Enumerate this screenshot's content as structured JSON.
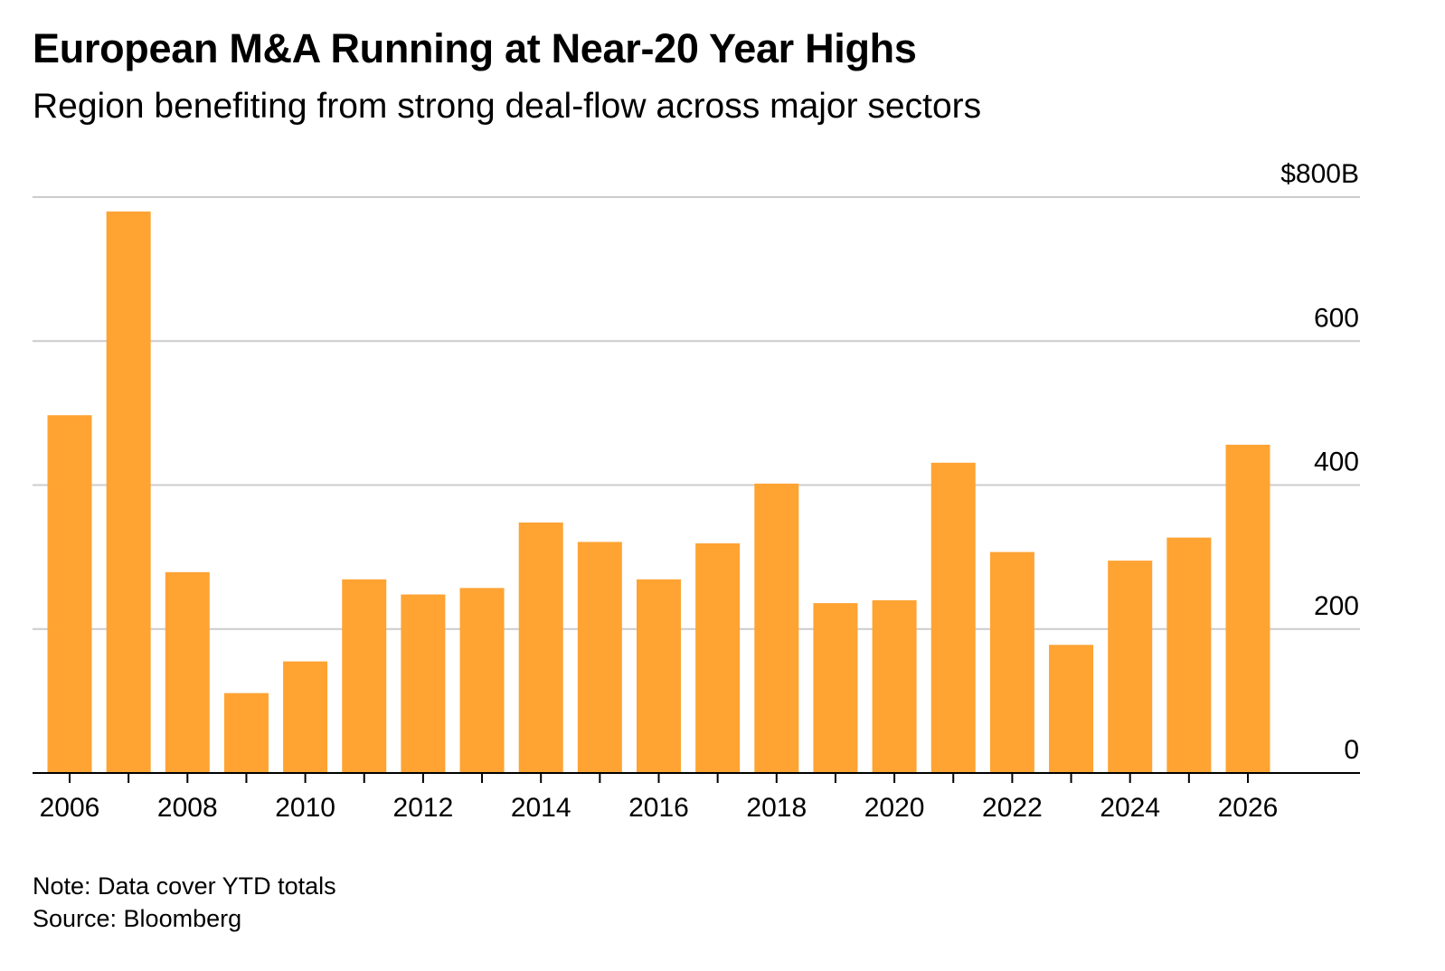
{
  "header": {
    "title": "European M&A Running at Near-20 Year Highs",
    "subtitle": "Region benefiting from strong deal-flow across major sectors"
  },
  "footer": {
    "note": "Note: Data cover YTD totals",
    "source": "Source: Bloomberg"
  },
  "colors": {
    "bar": "#FFA333",
    "grid": "#CCCCCC",
    "axis": "#000000",
    "text": "#000000"
  },
  "chart_data": {
    "type": "bar",
    "title": "European M&A Running at Near-20 Year Highs",
    "subtitle": "Region benefiting from strong deal-flow across major sectors",
    "categories": [
      "2006",
      "2007",
      "2008",
      "2009",
      "2010",
      "2011",
      "2012",
      "2013",
      "2014",
      "2015",
      "2016",
      "2017",
      "2018",
      "2019",
      "2020",
      "2021",
      "2022",
      "2023",
      "2024",
      "2025",
      "2026"
    ],
    "values": [
      497,
      780,
      279,
      111,
      155,
      269,
      248,
      257,
      348,
      321,
      269,
      319,
      402,
      236,
      240,
      431,
      307,
      178,
      295,
      327,
      456
    ],
    "x_tick_labels": [
      "2006",
      "2008",
      "2010",
      "2012",
      "2014",
      "2016",
      "2018",
      "2020",
      "2022",
      "2024",
      "2026"
    ],
    "y_ticks": [
      0,
      200,
      400,
      600,
      800
    ],
    "y_tick_labels": [
      "0",
      "200",
      "400",
      "600",
      "$800B"
    ],
    "ylim": [
      0,
      800
    ],
    "y_axis_position": "right",
    "grid": true,
    "legend": "none"
  }
}
